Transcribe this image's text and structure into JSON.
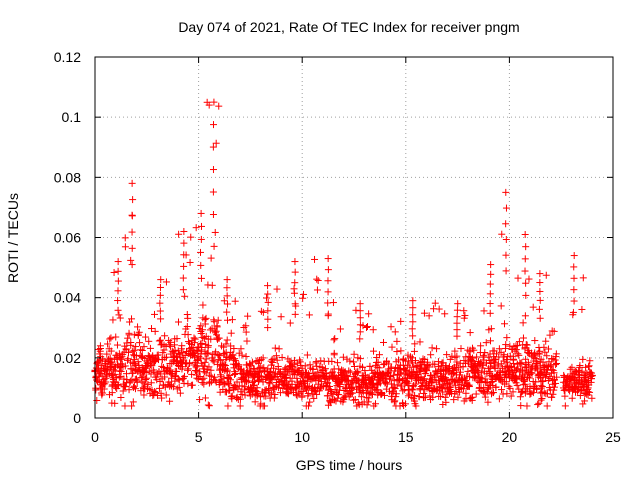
{
  "chart_data": {
    "type": "scatter",
    "title": "Day 074 of 2021, Rate Of TEC Index for receiver pngm",
    "xlabel": "GPS time / hours",
    "ylabel": "ROTI / TECUs",
    "xlim": [
      0,
      25
    ],
    "ylim": [
      0,
      0.12
    ],
    "xticks": [
      0,
      5,
      10,
      15,
      20,
      25
    ],
    "yticks": [
      0,
      0.02,
      0.04,
      0.06,
      0.08,
      0.1,
      0.12
    ],
    "xtick_labels": [
      "0",
      "5",
      "10",
      "15",
      "20",
      "25"
    ],
    "ytick_labels": [
      "0",
      "0.02",
      "0.04",
      "0.06",
      "0.08",
      "0.1",
      "0.12"
    ],
    "grid": true,
    "marker": "plus",
    "series_color": "#ff0000",
    "activity_profile": [
      {
        "t0": 0.0,
        "t1": 0.6,
        "base": 0.014,
        "spread": 0.008,
        "peak": 0.024
      },
      {
        "t0": 0.6,
        "t1": 1.4,
        "base": 0.016,
        "spread": 0.011,
        "peak": 0.052
      },
      {
        "t0": 1.4,
        "t1": 2.0,
        "base": 0.018,
        "spread": 0.014,
        "peak": 0.078
      },
      {
        "t0": 2.0,
        "t1": 3.8,
        "base": 0.017,
        "spread": 0.012,
        "peak": 0.046
      },
      {
        "t0": 3.8,
        "t1": 4.8,
        "base": 0.019,
        "spread": 0.013,
        "peak": 0.062
      },
      {
        "t0": 4.8,
        "t1": 5.3,
        "base": 0.02,
        "spread": 0.015,
        "peak": 0.068
      },
      {
        "t0": 5.3,
        "t1": 6.0,
        "base": 0.022,
        "spread": 0.018,
        "peak": 0.105
      },
      {
        "t0": 6.0,
        "t1": 6.8,
        "base": 0.016,
        "spread": 0.011,
        "peak": 0.046
      },
      {
        "t0": 6.8,
        "t1": 9.3,
        "base": 0.013,
        "spread": 0.009,
        "peak": 0.044
      },
      {
        "t0": 9.3,
        "t1": 10.0,
        "base": 0.013,
        "spread": 0.009,
        "peak": 0.052
      },
      {
        "t0": 10.0,
        "t1": 11.8,
        "base": 0.012,
        "spread": 0.008,
        "peak": 0.053
      },
      {
        "t0": 11.8,
        "t1": 13.5,
        "base": 0.012,
        "spread": 0.008,
        "peak": 0.038
      },
      {
        "t0": 13.5,
        "t1": 17.0,
        "base": 0.013,
        "spread": 0.009,
        "peak": 0.039
      },
      {
        "t0": 17.0,
        "t1": 18.6,
        "base": 0.014,
        "spread": 0.009,
        "peak": 0.038
      },
      {
        "t0": 18.6,
        "t1": 19.6,
        "base": 0.015,
        "spread": 0.011,
        "peak": 0.051
      },
      {
        "t0": 19.6,
        "t1": 20.3,
        "base": 0.017,
        "spread": 0.012,
        "peak": 0.075
      },
      {
        "t0": 20.3,
        "t1": 21.0,
        "base": 0.016,
        "spread": 0.012,
        "peak": 0.061
      },
      {
        "t0": 21.0,
        "t1": 22.3,
        "base": 0.015,
        "spread": 0.011,
        "peak": 0.048
      },
      {
        "t0": 22.3,
        "t1": 22.6,
        "base": 0.0,
        "spread": 0.0,
        "peak": 0.0
      },
      {
        "t0": 22.6,
        "t1": 24.0,
        "base": 0.012,
        "spread": 0.007,
        "peak": 0.054
      }
    ]
  }
}
